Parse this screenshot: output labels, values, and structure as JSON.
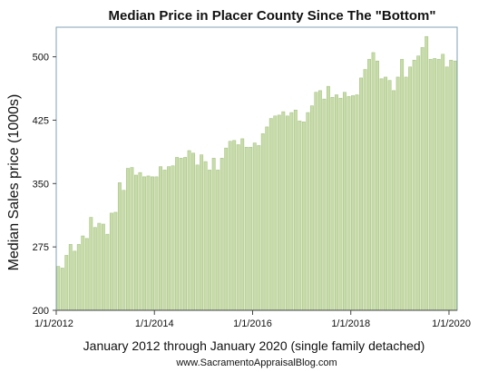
{
  "chart_data": {
    "type": "bar",
    "title": "Median Price in Placer County Since The \"Bottom\"",
    "ylabel": "Median Sales price (1000s)",
    "xlabel": "January 2012 through January 2020 (single family detached)",
    "credit": "www.SacramentoAppraisalBlog.com",
    "ylim": [
      200,
      535
    ],
    "yticks": [
      200,
      275,
      350,
      425,
      500
    ],
    "xtick_labels": [
      "1/1/2012",
      "1/1/2014",
      "1/1/2016",
      "1/1/2018",
      "1/1/2020"
    ],
    "xtick_index": [
      0,
      24,
      48,
      72,
      96
    ],
    "grid": false,
    "bar_fill": "#c8dca8",
    "bar_stroke": "#a9c48a",
    "plot_border": "#7fa0b4",
    "start": "2012-01",
    "values": [
      252,
      250,
      265,
      278,
      270,
      278,
      288,
      285,
      310,
      298,
      303,
      302,
      290,
      315,
      316,
      351,
      342,
      368,
      369,
      360,
      363,
      358,
      359,
      358,
      358,
      370,
      366,
      370,
      371,
      381,
      380,
      381,
      389,
      386,
      372,
      384,
      376,
      366,
      380,
      366,
      380,
      392,
      400,
      401,
      396,
      403,
      393,
      393,
      398,
      395,
      409,
      417,
      427,
      430,
      431,
      435,
      430,
      434,
      437,
      424,
      423,
      434,
      442,
      458,
      460,
      450,
      465,
      452,
      455,
      451,
      458,
      453,
      454,
      455,
      475,
      485,
      497,
      505,
      495,
      474,
      476,
      472,
      460,
      476,
      497,
      476,
      488,
      496,
      501,
      511,
      524,
      497,
      498,
      497,
      503,
      488,
      496,
      495
    ]
  }
}
